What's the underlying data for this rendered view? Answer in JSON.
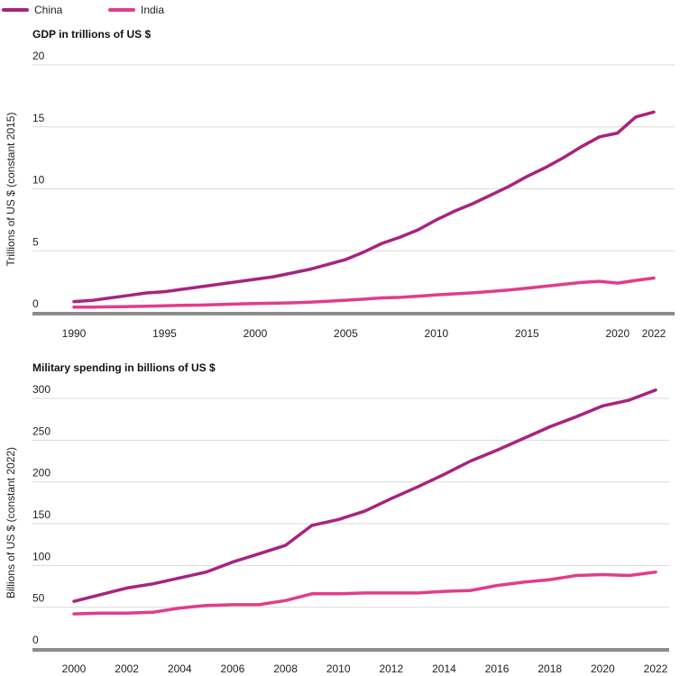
{
  "colors": {
    "china": "#a8237f",
    "india": "#e23c8c",
    "grid": "#d9d9d9",
    "baseline": "#8c8c8c"
  },
  "legend": [
    {
      "label": "China",
      "color": "#a8237f"
    },
    {
      "label": "India",
      "color": "#e23c8c"
    }
  ],
  "chart_data": [
    {
      "type": "line",
      "title": "GDP in trillions of US $",
      "xlabel": "",
      "ylabel": "Trillions of US $ (constant 2015)",
      "ylim": [
        0,
        20
      ],
      "xlim": [
        1990,
        2022
      ],
      "yticks": [
        0,
        5,
        10,
        15,
        20
      ],
      "xticks": [
        1990,
        1995,
        2000,
        2005,
        2010,
        2015,
        2020,
        2022
      ],
      "grid": true,
      "x": [
        1990,
        1991,
        1992,
        1993,
        1994,
        1995,
        1996,
        1997,
        1998,
        1999,
        2000,
        2001,
        2002,
        2003,
        2004,
        2005,
        2006,
        2007,
        2008,
        2009,
        2010,
        2011,
        2012,
        2013,
        2014,
        2015,
        2016,
        2017,
        2018,
        2019,
        2020,
        2021,
        2022
      ],
      "series": [
        {
          "name": "China",
          "values": [
            0.9,
            1.0,
            1.2,
            1.4,
            1.6,
            1.7,
            1.9,
            2.1,
            2.3,
            2.5,
            2.7,
            2.9,
            3.2,
            3.5,
            3.9,
            4.3,
            4.9,
            5.6,
            6.1,
            6.7,
            7.5,
            8.2,
            8.8,
            9.5,
            10.2,
            11.0,
            11.7,
            12.5,
            13.4,
            14.2,
            14.5,
            15.8,
            16.2
          ]
        },
        {
          "name": "India",
          "values": [
            0.45,
            0.46,
            0.48,
            0.5,
            0.53,
            0.56,
            0.6,
            0.62,
            0.66,
            0.71,
            0.74,
            0.77,
            0.8,
            0.86,
            0.93,
            1.01,
            1.1,
            1.2,
            1.24,
            1.34,
            1.45,
            1.53,
            1.61,
            1.72,
            1.84,
            1.98,
            2.14,
            2.29,
            2.44,
            2.54,
            2.39,
            2.61,
            2.8
          ]
        }
      ]
    },
    {
      "type": "line",
      "title": "Military spending in billions of US $",
      "xlabel": "",
      "ylabel": "Billions of US $ (constant 2022)",
      "ylim": [
        0,
        300
      ],
      "xlim": [
        2000,
        2022
      ],
      "yticks": [
        0,
        50,
        100,
        150,
        200,
        250,
        300
      ],
      "xticks": [
        2000,
        2002,
        2004,
        2006,
        2008,
        2010,
        2012,
        2014,
        2016,
        2018,
        2020,
        2022
      ],
      "grid": true,
      "x": [
        2000,
        2001,
        2002,
        2003,
        2004,
        2005,
        2006,
        2007,
        2008,
        2009,
        2010,
        2011,
        2012,
        2013,
        2014,
        2015,
        2016,
        2017,
        2018,
        2019,
        2020,
        2021,
        2022
      ],
      "series": [
        {
          "name": "China",
          "values": [
            57,
            65,
            73,
            78,
            85,
            92,
            104,
            114,
            124,
            148,
            155,
            165,
            180,
            194,
            209,
            225,
            238,
            252,
            266,
            278,
            291,
            298,
            310
          ]
        },
        {
          "name": "India",
          "values": [
            42,
            43,
            43,
            44,
            49,
            52,
            53,
            53,
            58,
            66,
            66,
            67,
            67,
            67,
            69,
            70,
            76,
            80,
            83,
            88,
            89,
            88,
            92
          ]
        }
      ]
    }
  ]
}
